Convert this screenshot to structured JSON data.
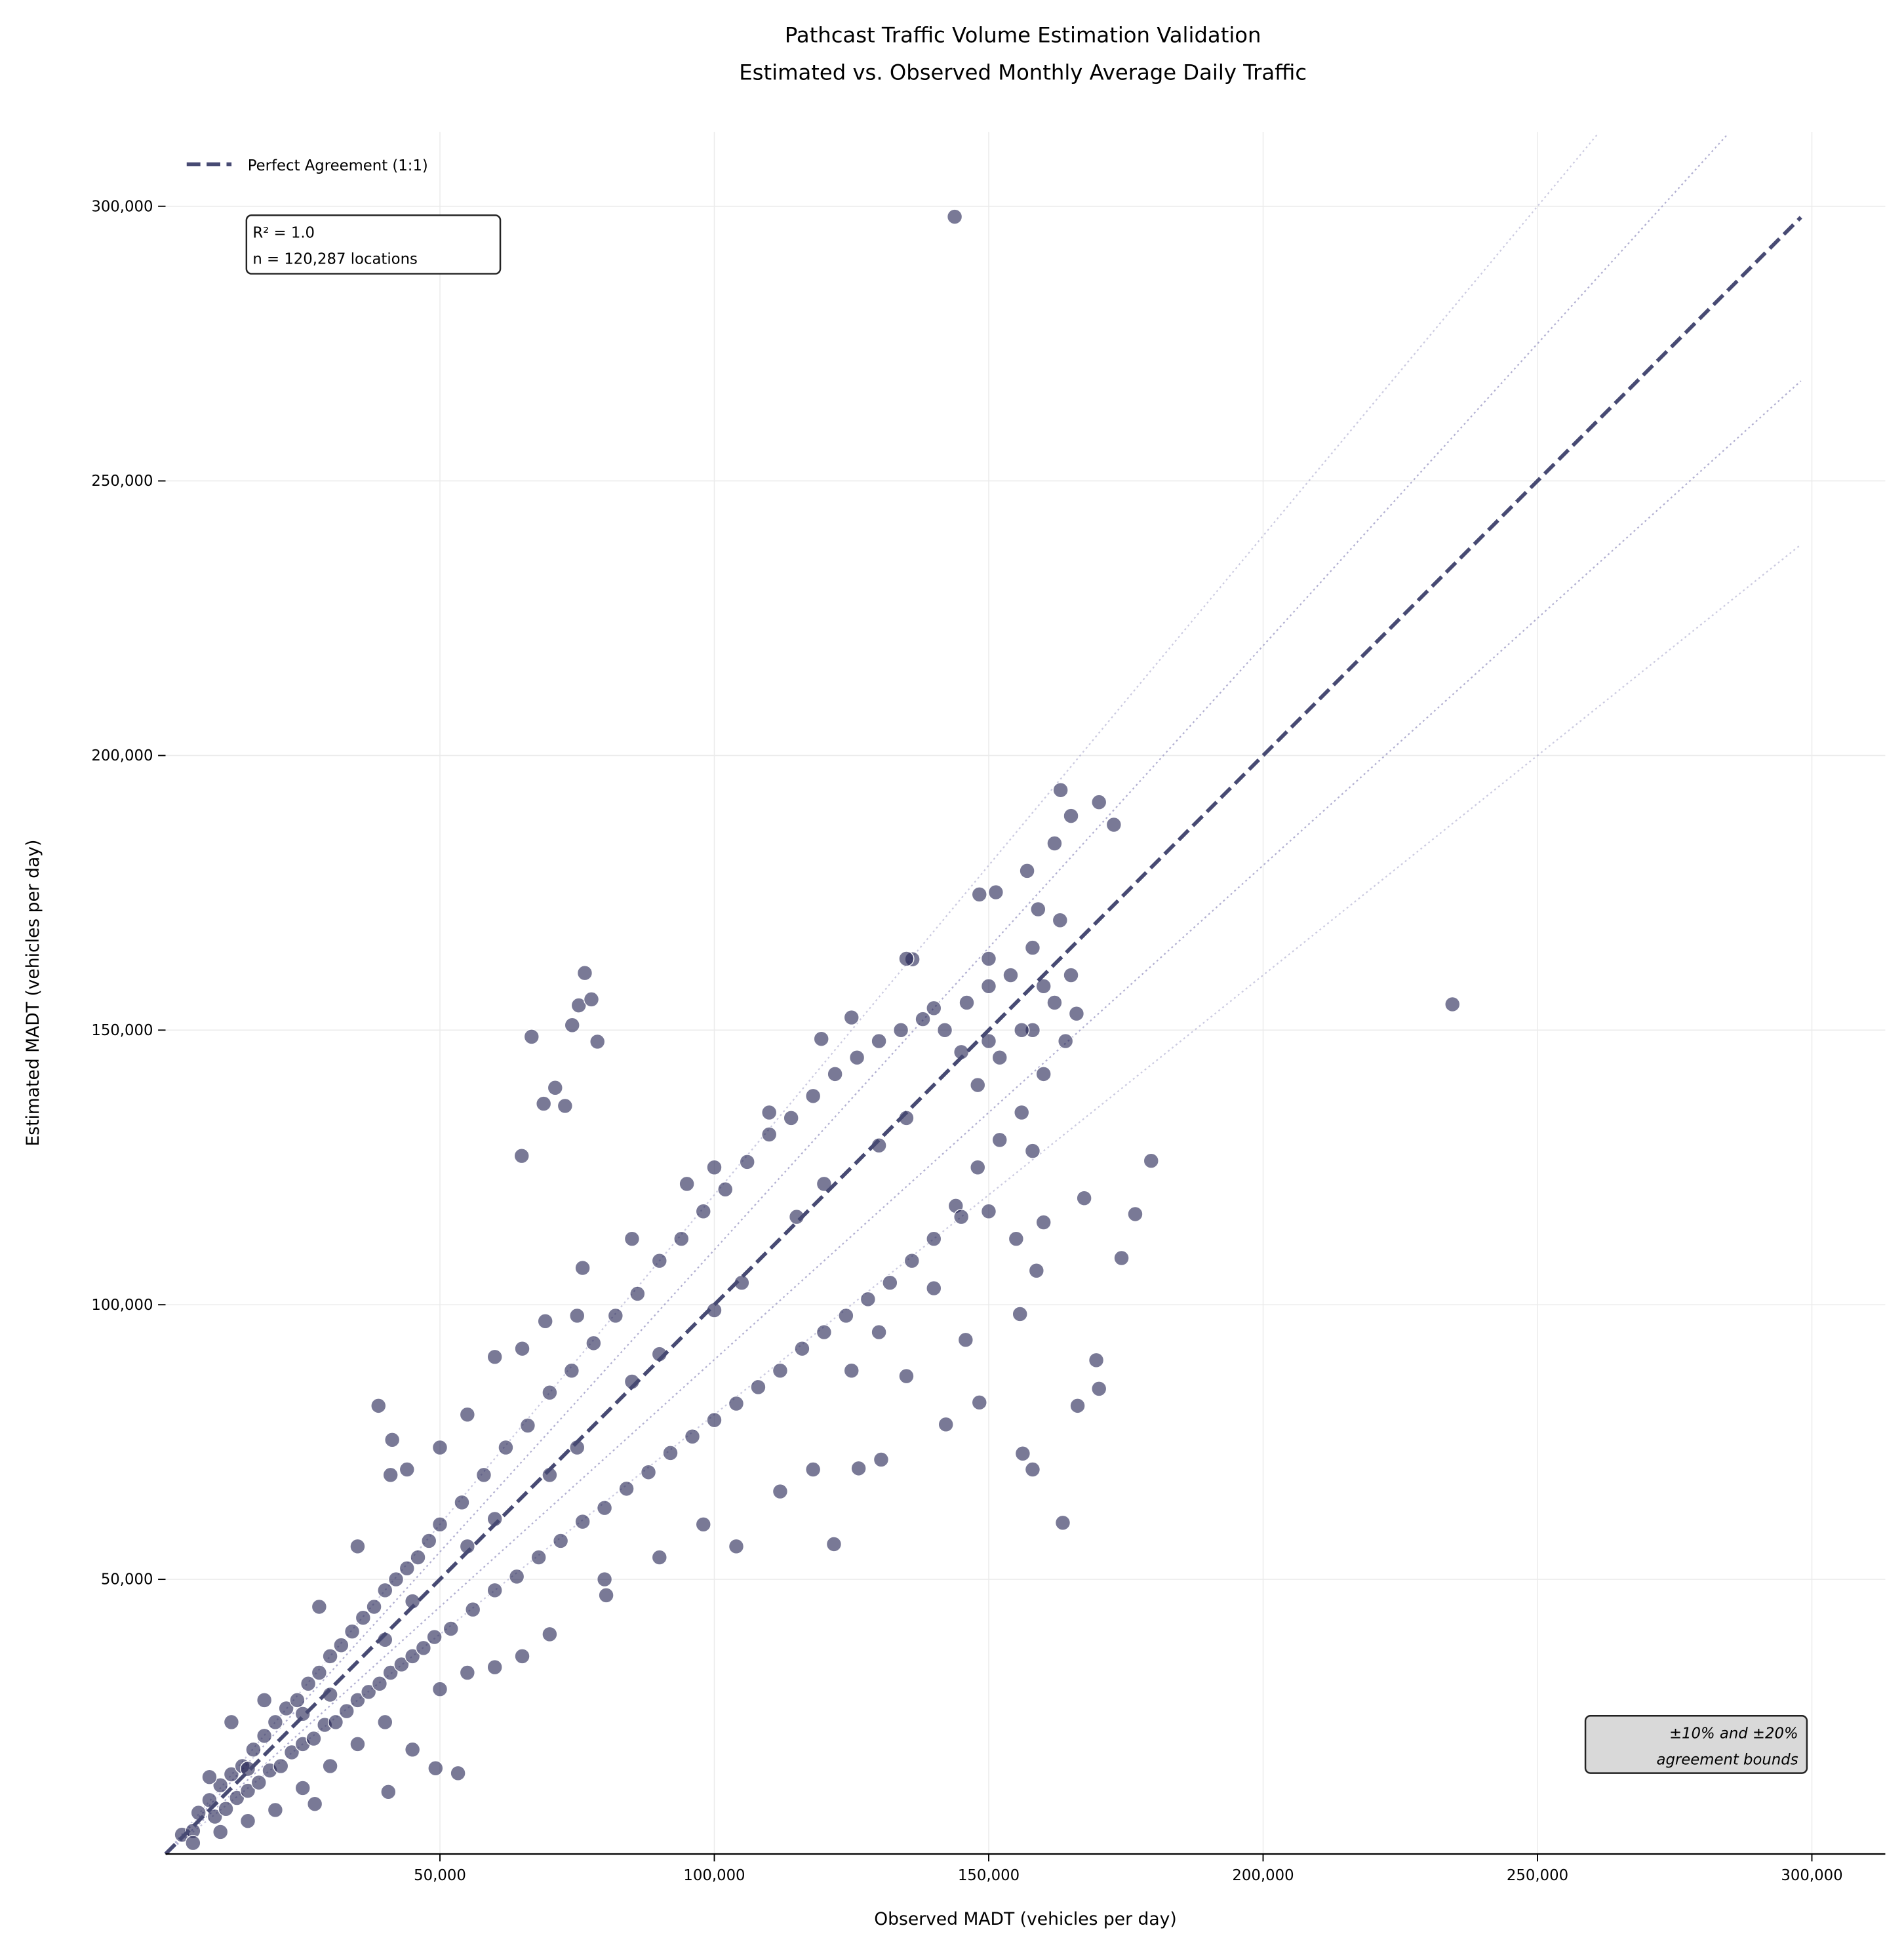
{
  "chart_data": {
    "type": "scatter",
    "title": "Pathcast Traffic Volume Estimation Validation",
    "subtitle": "Estimated vs. Observed Monthly Average Daily Traffic",
    "xlabel": "Observed MADT (vehicles per day)",
    "ylabel": "Estimated MADT (vehicles per day)",
    "xlim": [
      0,
      313000
    ],
    "ylim": [
      0,
      313000
    ],
    "grid": true,
    "x_ticks": [
      "50,000",
      "100,000",
      "150,000",
      "200,000",
      "250,000",
      "300,000"
    ],
    "y_ticks": [
      "50,000",
      "100,000",
      "150,000",
      "200,000",
      "250,000",
      "300,000"
    ],
    "legend": {
      "placement": "top-left",
      "entries": [
        "Perfect Agreement (1:1)"
      ]
    },
    "annotations": {
      "stats_line1": "R² = 1.0",
      "stats_line2": "n = 120,287 locations",
      "bounds_line1": "±10% and ±20%",
      "bounds_line2": "agreement bounds"
    },
    "reference_lines": {
      "identity_max": 298000,
      "bounds_factors": [
        1.2,
        1.1,
        0.9,
        0.8
      ]
    },
    "colors": {
      "points": "#1f2050",
      "identity": "#474a73",
      "bounds": "#a9a6cc",
      "grid": "#ebebeb",
      "bounds_box": "#d9d9d9"
    },
    "points": [
      [
        143800,
        298100
      ],
      [
        234500,
        154700
      ],
      [
        76400,
        160400
      ],
      [
        66700,
        148800
      ],
      [
        64900,
        127100
      ],
      [
        68900,
        136600
      ],
      [
        71000,
        139500
      ],
      [
        72800,
        136200
      ],
      [
        74100,
        150900
      ],
      [
        75300,
        154500
      ],
      [
        77600,
        155600
      ],
      [
        78700,
        147900
      ],
      [
        76000,
        106700
      ],
      [
        179600,
        126200
      ],
      [
        176700,
        116500
      ],
      [
        174200,
        108500
      ],
      [
        167400,
        119400
      ],
      [
        170100,
        84700
      ],
      [
        169600,
        89900
      ],
      [
        166200,
        81600
      ],
      [
        163500,
        60300
      ],
      [
        158000,
        70000
      ],
      [
        156200,
        72900
      ],
      [
        155700,
        98300
      ],
      [
        158700,
        106200
      ],
      [
        145800,
        93600
      ],
      [
        142200,
        78200
      ],
      [
        148300,
        82200
      ],
      [
        121800,
        56400
      ],
      [
        130400,
        71800
      ],
      [
        126300,
        70200
      ],
      [
        80300,
        47100
      ],
      [
        53300,
        14700
      ],
      [
        49200,
        15600
      ],
      [
        40600,
        11300
      ],
      [
        27200,
        9100
      ],
      [
        38800,
        81600
      ],
      [
        41300,
        75400
      ],
      [
        163100,
        193700
      ],
      [
        170100,
        191500
      ],
      [
        172800,
        187400
      ],
      [
        148300,
        174700
      ],
      [
        151300,
        175100
      ],
      [
        136100,
        162900
      ],
      [
        125000,
        152300
      ],
      [
        119500,
        148400
      ],
      [
        69200,
        97000
      ],
      [
        3000,
        3500
      ],
      [
        5000,
        4200
      ],
      [
        6000,
        7500
      ],
      [
        8000,
        9800
      ],
      [
        9000,
        6800
      ],
      [
        10000,
        12500
      ],
      [
        11000,
        8200
      ],
      [
        12000,
        14500
      ],
      [
        13000,
        10200
      ],
      [
        14000,
        16000
      ],
      [
        15000,
        11500
      ],
      [
        16000,
        19000
      ],
      [
        17000,
        13000
      ],
      [
        18000,
        21500
      ],
      [
        19000,
        15200
      ],
      [
        20000,
        24000
      ],
      [
        21000,
        16000
      ],
      [
        22000,
        26500
      ],
      [
        23000,
        18500
      ],
      [
        24000,
        28000
      ],
      [
        25000,
        20000
      ],
      [
        26000,
        31000
      ],
      [
        27000,
        21000
      ],
      [
        28000,
        33000
      ],
      [
        29000,
        23500
      ],
      [
        30000,
        36000
      ],
      [
        31000,
        24000
      ],
      [
        32000,
        38000
      ],
      [
        33000,
        26000
      ],
      [
        34000,
        40500
      ],
      [
        35000,
        28000
      ],
      [
        36000,
        43000
      ],
      [
        37000,
        29500
      ],
      [
        38000,
        45000
      ],
      [
        39000,
        31000
      ],
      [
        40000,
        48000
      ],
      [
        41000,
        33000
      ],
      [
        42000,
        50000
      ],
      [
        43000,
        34500
      ],
      [
        44000,
        52000
      ],
      [
        45000,
        36000
      ],
      [
        46000,
        54000
      ],
      [
        47000,
        37500
      ],
      [
        48000,
        57000
      ],
      [
        49000,
        39500
      ],
      [
        50000,
        60000
      ],
      [
        52000,
        41000
      ],
      [
        54000,
        64000
      ],
      [
        56000,
        44500
      ],
      [
        58000,
        69000
      ],
      [
        60000,
        48000
      ],
      [
        62000,
        74000
      ],
      [
        64000,
        50500
      ],
      [
        66000,
        78000
      ],
      [
        68000,
        54000
      ],
      [
        70000,
        84000
      ],
      [
        72000,
        57000
      ],
      [
        74000,
        88000
      ],
      [
        76000,
        60500
      ],
      [
        78000,
        93000
      ],
      [
        80000,
        63000
      ],
      [
        82000,
        98000
      ],
      [
        84000,
        66500
      ],
      [
        86000,
        102000
      ],
      [
        88000,
        69500
      ],
      [
        90000,
        108000
      ],
      [
        92000,
        73000
      ],
      [
        94000,
        112000
      ],
      [
        96000,
        76000
      ],
      [
        98000,
        117000
      ],
      [
        100000,
        79000
      ],
      [
        102000,
        121000
      ],
      [
        104000,
        82000
      ],
      [
        106000,
        126000
      ],
      [
        108000,
        85000
      ],
      [
        110000,
        131000
      ],
      [
        112000,
        88000
      ],
      [
        114000,
        134000
      ],
      [
        116000,
        92000
      ],
      [
        118000,
        138000
      ],
      [
        120000,
        95000
      ],
      [
        122000,
        142000
      ],
      [
        124000,
        98000
      ],
      [
        126000,
        145000
      ],
      [
        128000,
        101000
      ],
      [
        130000,
        148000
      ],
      [
        132000,
        104000
      ],
      [
        134000,
        150000
      ],
      [
        136000,
        108000
      ],
      [
        138000,
        152000
      ],
      [
        140000,
        112000
      ],
      [
        142000,
        150000
      ],
      [
        144000,
        118000
      ],
      [
        146000,
        155000
      ],
      [
        148000,
        125000
      ],
      [
        150000,
        158000
      ],
      [
        152000,
        130000
      ],
      [
        154000,
        160000
      ],
      [
        156000,
        135000
      ],
      [
        158000,
        150000
      ],
      [
        160000,
        142000
      ],
      [
        162000,
        155000
      ],
      [
        164000,
        148000
      ],
      [
        165000,
        160000
      ],
      [
        15000,
        15500
      ],
      [
        30000,
        29000
      ],
      [
        45000,
        46000
      ],
      [
        60000,
        61000
      ],
      [
        75000,
        74000
      ],
      [
        90000,
        91000
      ],
      [
        105000,
        104000
      ],
      [
        120000,
        122000
      ],
      [
        135000,
        134000
      ],
      [
        150000,
        148000
      ],
      [
        25000,
        25500
      ],
      [
        40000,
        39000
      ],
      [
        55000,
        56000
      ],
      [
        70000,
        69000
      ],
      [
        85000,
        86000
      ],
      [
        100000,
        99000
      ],
      [
        115000,
        116000
      ],
      [
        130000,
        129000
      ],
      [
        145000,
        146000
      ],
      [
        160000,
        158000
      ],
      [
        60000,
        90500
      ],
      [
        41000,
        69000
      ],
      [
        44000,
        70000
      ],
      [
        100000,
        125000
      ],
      [
        110000,
        135000
      ],
      [
        125000,
        88000
      ],
      [
        130000,
        95000
      ],
      [
        112000,
        66000
      ],
      [
        118000,
        70000
      ],
      [
        104000,
        56000
      ],
      [
        98000,
        60000
      ],
      [
        90000,
        54000
      ],
      [
        80000,
        50000
      ],
      [
        70000,
        40000
      ],
      [
        65000,
        36000
      ],
      [
        60000,
        34000
      ],
      [
        55000,
        33000
      ],
      [
        50000,
        30000
      ],
      [
        45000,
        19000
      ],
      [
        40000,
        24000
      ],
      [
        35000,
        20000
      ],
      [
        30000,
        16000
      ],
      [
        25000,
        12000
      ],
      [
        20000,
        8000
      ],
      [
        15000,
        6000
      ],
      [
        10000,
        4000
      ],
      [
        5000,
        2000
      ],
      [
        8000,
        14000
      ],
      [
        12000,
        24000
      ],
      [
        18000,
        28000
      ],
      [
        28000,
        45000
      ],
      [
        35000,
        56000
      ],
      [
        50000,
        74000
      ],
      [
        55000,
        80000
      ],
      [
        65000,
        92000
      ],
      [
        75000,
        98000
      ],
      [
        85000,
        112000
      ],
      [
        95000,
        122000
      ],
      [
        135000,
        163000
      ],
      [
        140000,
        154000
      ],
      [
        155000,
        112000
      ],
      [
        160000,
        115000
      ],
      [
        158000,
        128000
      ],
      [
        150000,
        117000
      ],
      [
        140000,
        103000
      ],
      [
        135000,
        87000
      ],
      [
        145000,
        116000
      ],
      [
        148000,
        140000
      ],
      [
        152000,
        145000
      ],
      [
        157000,
        179000
      ],
      [
        159000,
        172000
      ],
      [
        162000,
        184000
      ],
      [
        165000,
        189000
      ],
      [
        163000,
        170000
      ],
      [
        158000,
        165000
      ],
      [
        150000,
        163000
      ],
      [
        156000,
        150000
      ],
      [
        166000,
        153000
      ]
    ]
  }
}
